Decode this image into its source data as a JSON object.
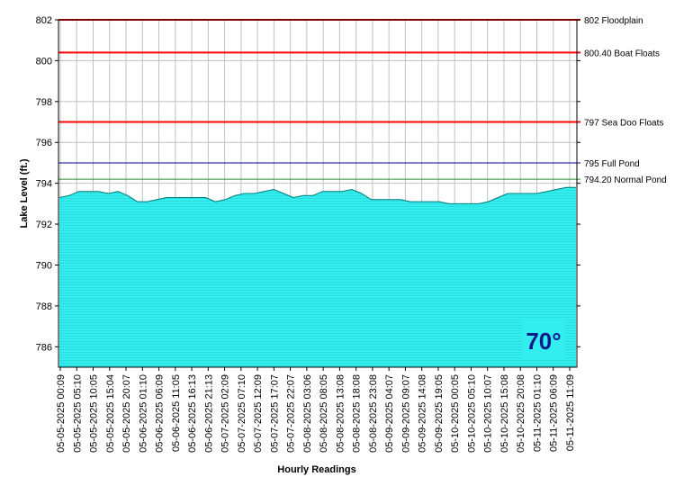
{
  "chart_data": {
    "type": "area",
    "xlabel": "Hourly Readings",
    "ylabel": "Lake Level (ft.)",
    "ylim": [
      785,
      802
    ],
    "yticks": [
      786,
      788,
      790,
      792,
      794,
      796,
      798,
      800,
      802
    ],
    "grid": true,
    "x_tick_labels": [
      "05-05-2025 00:09",
      "05-05-2025 05:10",
      "05-05-2025 10:05",
      "05-05-2025 15:04",
      "05-05-2025 20:07",
      "05-06-2025 01:10",
      "05-06-2025 06:09",
      "05-06-2025 11:05",
      "05-06-2025 16:13",
      "05-06-2025 21:13",
      "05-07-2025 02:09",
      "05-07-2025 07:10",
      "05-07-2025 12:09",
      "05-07-2025 17:07",
      "05-07-2025 22:07",
      "05-08-2025 03:06",
      "05-08-2025 08:05",
      "05-08-2025 13:08",
      "05-08-2025 18:08",
      "05-08-2025 23:08",
      "05-09-2025 04:07",
      "05-09-2025 09:07",
      "05-09-2025 14:08",
      "05-09-2025 19:05",
      "05-10-2025 00:05",
      "05-10-2025 05:10",
      "05-10-2025 10:07",
      "05-10-2025 15:08",
      "05-10-2025 20:08",
      "05-11-2025 01:10",
      "05-11-2025 06:09",
      "05-11-2025 11:09"
    ],
    "values": [
      793.3,
      793.4,
      793.6,
      793.6,
      793.6,
      793.5,
      793.6,
      793.4,
      793.1,
      793.1,
      793.2,
      793.3,
      793.3,
      793.3,
      793.3,
      793.3,
      793.1,
      793.2,
      793.4,
      793.5,
      793.5,
      793.6,
      793.7,
      793.5,
      793.3,
      793.4,
      793.4,
      793.6,
      793.6,
      793.6,
      793.7,
      793.5,
      793.2,
      793.2,
      793.2,
      793.2,
      793.1,
      793.1,
      793.1,
      793.1,
      793.0,
      793.0,
      793.0,
      793.0,
      793.1,
      793.3,
      793.5,
      793.5,
      793.5,
      793.5,
      793.6,
      793.7,
      793.8,
      793.8
    ],
    "reference_lines": [
      {
        "value": 802,
        "label": "802 Floodplain",
        "color": "#ff0000"
      },
      {
        "value": 800.4,
        "label": "800.40 Boat Floats",
        "color": "#ff0000"
      },
      {
        "value": 797,
        "label": "797 Sea Doo Floats",
        "color": "#ff0000"
      },
      {
        "value": 795,
        "label": "795 Full Pond",
        "color": "#0000a0"
      },
      {
        "value": 794.2,
        "label": "794.20 Normal Pond",
        "color": "#2e8b2e"
      }
    ],
    "fill_color": "#33eeee",
    "line_color": "#007a7a",
    "temperature": "70°",
    "temperature_box_color": "#33eeee"
  }
}
